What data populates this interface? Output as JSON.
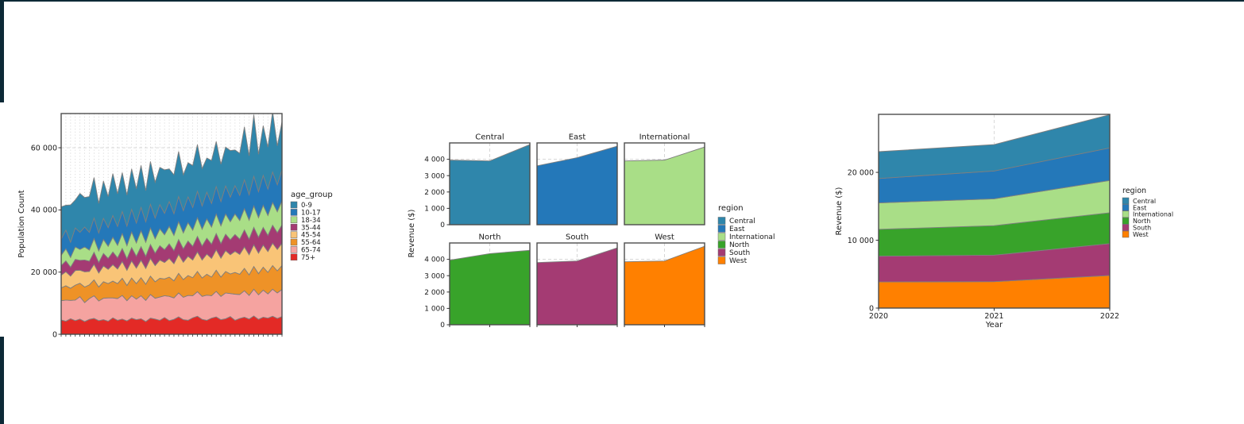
{
  "frame": {
    "color": "#0c2936",
    "background": "#ffffff"
  },
  "text_color": "#1a1a1a",
  "spine_color": "#4d4d4d",
  "grid_color": "#d2d2d2",
  "area_edge_color": "#7f7f7f",
  "chart_data": [
    {
      "type": "area",
      "name": "population-by-age-stacked-area",
      "ylabel": "Population Count",
      "legend_title": "age_group",
      "ylim": [
        0,
        71000
      ],
      "yticks": [
        {
          "v": 0,
          "label": "0"
        },
        {
          "v": 20000,
          "label": "20 000"
        },
        {
          "v": 40000,
          "label": "40 000"
        },
        {
          "v": 60000,
          "label": "60 000"
        }
      ],
      "xticks_labeled": false,
      "grid": "dotted vertical gridline at every x point, dashed horizontal at y ticks",
      "stacking": "stacked; bottom-to-top is reverse of series order (75+ at bottom, 0-9 on top)",
      "series": [
        {
          "name": "0-9",
          "color": "#2f86ab",
          "values": [
            10400,
            8000,
            12000,
            9000,
            12500,
            9500,
            11500,
            13000,
            9500,
            12000,
            10000,
            13500,
            10500,
            12500,
            10000,
            13000,
            11000,
            13500,
            10000,
            13800,
            11500,
            12000,
            14000,
            10500,
            12500,
            14500,
            11500,
            11000,
            13500,
            15000,
            12000,
            11000,
            13800,
            14500,
            12000,
            12500,
            15000,
            11500,
            13500,
            17000,
            12500,
            19800,
            12000,
            16000,
            13500,
            19500,
            12500,
            15500
          ]
        },
        {
          "name": "10-17",
          "color": "#2478b9",
          "values": [
            5200,
            6000,
            4900,
            6100,
            5500,
            6400,
            5700,
            6600,
            5800,
            6800,
            6000,
            7000,
            6100,
            7100,
            6300,
            7300,
            6400,
            7500,
            6600,
            7600,
            6700,
            7800,
            6900,
            8000,
            7000,
            8100,
            7200,
            8300,
            7300,
            8500,
            7500,
            8600,
            7600,
            8800,
            7800,
            9000,
            7900,
            9100,
            8100,
            9300,
            8200,
            9500,
            8400,
            9600,
            8500,
            9800,
            8700,
            10000
          ]
        },
        {
          "name": "18-34",
          "color": "#a9de87",
          "values": [
            3300,
            3900,
            3100,
            4000,
            3500,
            4200,
            3600,
            4400,
            3700,
            4500,
            3900,
            4700,
            4000,
            4800,
            4200,
            5000,
            4300,
            5100,
            4500,
            5300,
            4600,
            5400,
            4800,
            5600,
            4900,
            5700,
            5100,
            5900,
            5200,
            6000,
            5400,
            6200,
            5500,
            6300,
            5700,
            6500,
            5800,
            6600,
            6000,
            6800,
            6100,
            6900,
            6300,
            7100,
            6400,
            7300,
            6700,
            7700
          ]
        },
        {
          "name": "35-44",
          "color": "#a43b73",
          "values": [
            3100,
            3500,
            2900,
            3600,
            3200,
            3800,
            3300,
            3900,
            3400,
            4000,
            3500,
            4100,
            3600,
            4200,
            3700,
            4300,
            3800,
            4400,
            3900,
            4500,
            4000,
            4600,
            4100,
            4700,
            4200,
            4800,
            4300,
            4900,
            4400,
            5000,
            4500,
            5100,
            4600,
            5200,
            4700,
            5300,
            4800,
            5400,
            4900,
            5500,
            5000,
            5600,
            5100,
            5700,
            5200,
            5800,
            5400,
            5900
          ]
        },
        {
          "name": "45-54",
          "color": "#f9c477",
          "values": [
            4100,
            4500,
            3900,
            4700,
            4200,
            4900,
            4300,
            5000,
            4500,
            5100,
            4600,
            5300,
            4700,
            5400,
            4900,
            5500,
            5000,
            5600,
            5100,
            5700,
            5200,
            5900,
            5300,
            6000,
            5500,
            6100,
            5600,
            6200,
            5700,
            6300,
            5800,
            6500,
            6000,
            6600,
            6100,
            6700,
            6200,
            6800,
            6400,
            6900,
            6500,
            7000,
            6600,
            7100,
            6700,
            7200,
            6900,
            7200
          ]
        },
        {
          "name": "55-64",
          "color": "#ee9227",
          "values": [
            4100,
            4600,
            3900,
            4800,
            4300,
            5000,
            4400,
            5100,
            4500,
            5300,
            4600,
            5400,
            4800,
            5500,
            4900,
            5700,
            5000,
            5800,
            5200,
            5900,
            5300,
            6000,
            5400,
            6200,
            5500,
            6300,
            5700,
            6400,
            5800,
            6500,
            5900,
            6700,
            6000,
            6800,
            6200,
            6900,
            6300,
            7000,
            6500,
            7200,
            6600,
            7300,
            6800,
            7400,
            6900,
            7600,
            7100,
            7700
          ]
        },
        {
          "name": "65-74",
          "color": "#f5a3a0",
          "values": [
            6200,
            6800,
            5900,
            6600,
            7200,
            6100,
            6700,
            7300,
            6300,
            6900,
            7500,
            6400,
            7000,
            7600,
            6500,
            7200,
            6600,
            7400,
            6800,
            7600,
            6700,
            7500,
            7000,
            7800,
            6900,
            7700,
            7200,
            8000,
            7100,
            7900,
            7400,
            8100,
            7200,
            8200,
            7500,
            8300,
            7400,
            8400,
            7700,
            8500,
            7600,
            8600,
            7900,
            8700,
            7800,
            8700,
            8200,
            8700
          ]
        },
        {
          "name": "75+",
          "color": "#e32a26",
          "values": [
            4600,
            4200,
            5000,
            4400,
            4900,
            4100,
            4800,
            5100,
            4400,
            4700,
            4200,
            5300,
            4500,
            4900,
            4300,
            5200,
            4700,
            5000,
            4100,
            5200,
            4900,
            4500,
            5400,
            4400,
            4800,
            5600,
            4700,
            4500,
            5300,
            5800,
            4800,
            4500,
            5200,
            5600,
            4700,
            5000,
            5700,
            4500,
            5100,
            5500,
            4900,
            5900,
            4800,
            5500,
            5200,
            5800,
            5100,
            5700
          ]
        }
      ]
    },
    {
      "type": "area",
      "name": "revenue-by-region-facets",
      "ylabel": "Revenue ($)",
      "legend_title": "region",
      "x": [
        2020,
        2021,
        2022
      ],
      "ylim": [
        0,
        5000
      ],
      "yticks": [
        {
          "v": 0,
          "label": "0"
        },
        {
          "v": 1000,
          "label": "1 000"
        },
        {
          "v": 2000,
          "label": "2 000"
        },
        {
          "v": 3000,
          "label": "3 000"
        },
        {
          "v": 4000,
          "label": "4 000"
        }
      ],
      "xticks_labeled": false,
      "grid": "dashed gridlines at y ticks and at middle x (2021)",
      "facets": [
        {
          "name": "Central",
          "color": "#2f86ab",
          "values": [
            3950,
            3900,
            4900
          ]
        },
        {
          "name": "East",
          "color": "#2478b9",
          "values": [
            3600,
            4100,
            4800
          ]
        },
        {
          "name": "International",
          "color": "#a9de87",
          "values": [
            3900,
            3950,
            4750
          ]
        },
        {
          "name": "North",
          "color": "#38a32a",
          "values": [
            3950,
            4350,
            4550
          ]
        },
        {
          "name": "South",
          "color": "#a43b73",
          "values": [
            3800,
            3900,
            4700
          ]
        },
        {
          "name": "West",
          "color": "#ff8000",
          "values": [
            3850,
            3900,
            4800
          ]
        }
      ]
    },
    {
      "type": "area",
      "name": "revenue-by-region-stacked-area",
      "ylabel": "Revenue ($)",
      "xlabel": "Year",
      "legend_title": "region",
      "x": [
        2020,
        2021,
        2022
      ],
      "xtick_labels": [
        "2020",
        "2021",
        "2022"
      ],
      "ylim": [
        0,
        28550
      ],
      "yticks": [
        {
          "v": 0,
          "label": "0"
        },
        {
          "v": 10000,
          "label": "10 000"
        },
        {
          "v": 20000,
          "label": "20 000"
        }
      ],
      "grid": "dashed vertical gridlines at years, dashed horizontal at y ticks",
      "stacking": "stacked; bottom-to-top is reverse of series order (West at bottom, Central on top)",
      "series": [
        {
          "name": "Central",
          "color": "#2f86ab",
          "values": [
            3950,
            3900,
            4900
          ]
        },
        {
          "name": "East",
          "color": "#2478b9",
          "values": [
            3600,
            4100,
            4800
          ]
        },
        {
          "name": "International",
          "color": "#a9de87",
          "values": [
            3900,
            3950,
            4750
          ]
        },
        {
          "name": "North",
          "color": "#38a32a",
          "values": [
            3950,
            4350,
            4550
          ]
        },
        {
          "name": "South",
          "color": "#a43b73",
          "values": [
            3800,
            3900,
            4700
          ]
        },
        {
          "name": "West",
          "color": "#ff8000",
          "values": [
            3850,
            3900,
            4800
          ]
        }
      ]
    }
  ]
}
